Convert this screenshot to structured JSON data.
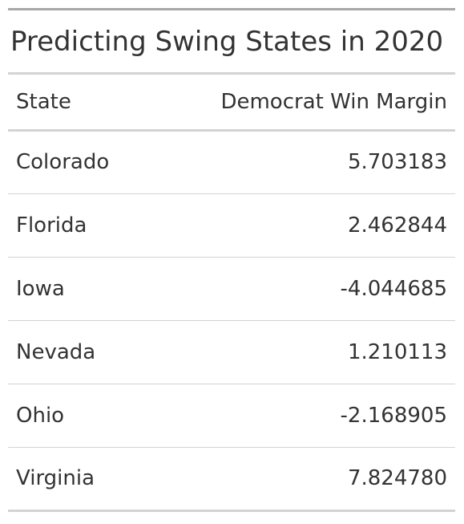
{
  "chart_data": {
    "type": "table",
    "title": "Predicting Swing States in 2020",
    "columns": [
      "State",
      "Democrat Win Margin"
    ],
    "rows": [
      {
        "state": "Colorado",
        "margin": "5.703183"
      },
      {
        "state": "Florida",
        "margin": "2.462844"
      },
      {
        "state": "Iowa",
        "margin": "-4.044685"
      },
      {
        "state": "Nevada",
        "margin": "1.210113"
      },
      {
        "state": "Ohio",
        "margin": "-2.168905"
      },
      {
        "state": "Virginia",
        "margin": "7.824780"
      }
    ]
  },
  "colors": {
    "text": "#333333",
    "rule_dark": "#a8a8a8",
    "rule_light": "#d3d3d3"
  }
}
